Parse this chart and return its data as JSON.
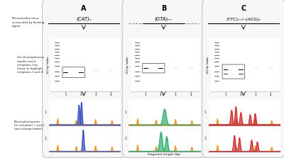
{
  "title_A": "(CAT)ₙ",
  "title_B": "(GTA)ₙ–",
  "title_C": "(TTC)ₙ–/–(ACG)ₙ",
  "panel_labels": [
    "A",
    "B",
    "C"
  ],
  "left_labels": [
    "Microsatellite locus\nsurrounded by flanking\nregion.",
    "Gel electrophoresis\n(ladder and 4\ntemplates, box\ndrawn to highlight\ntemplates 1 and 2)",
    "Electropherograms\nfor templates 1 and 2\n(plus orange ladder)"
  ],
  "xlabel": "Fragment length (bp)",
  "color_A": "#3344bb",
  "color_B": "#22aa66",
  "color_C": "#cc2222",
  "color_orange": "#ee8800",
  "bg_color": "#ffffff"
}
